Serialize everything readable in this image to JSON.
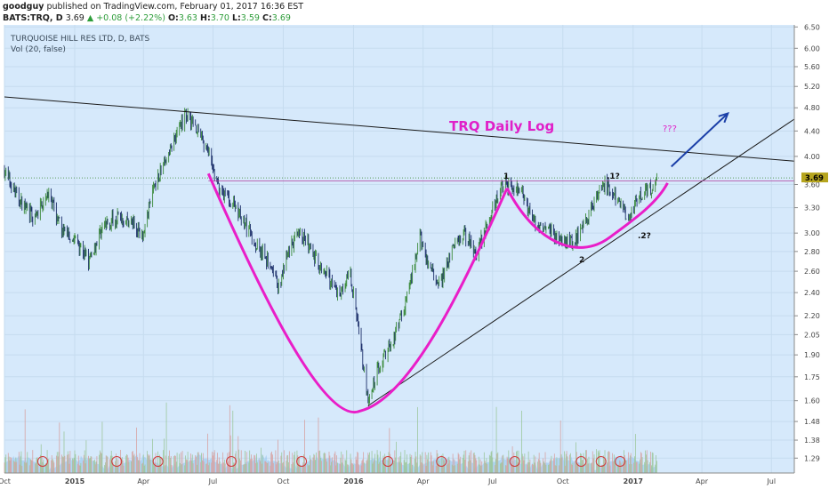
{
  "header": {
    "author": "goodguy",
    "published_text": "published on TradingView.com, February 01, 2017 16:36 EST",
    "symbol": "BATS:TRQ, D",
    "last": "3.69",
    "change": "+0.08 (+2.22%)",
    "o_label": "O:",
    "o_value": "3.63",
    "h_label": "H:",
    "h_value": "3.70",
    "l_label": "L:",
    "l_value": "3.59",
    "c_label": "C:",
    "c_value": "3.69"
  },
  "legend": {
    "series_title": "TURQUOISE HILL RES LTD, D, BATS",
    "volume_title": "Vol (20, false)"
  },
  "annotations": {
    "title": "TRQ  Daily Log",
    "question": "???",
    "peak1": "1",
    "peak1q": ".1?",
    "trough2": "2",
    "trough2q": ".2?",
    "price_tag": "3.69"
  },
  "colors": {
    "background": "#d6e9fb",
    "grid": "#c6dcef",
    "candle_up": "#3a8a3a",
    "candle_down": "#1c2f6a",
    "cup_curve": "#e91ec8",
    "title_pink": "#e020c8",
    "arrow": "#1b3fa8",
    "resistance_line": "#b040a0",
    "price_tag": "#b6a51e",
    "volume_area": "#8fc3ec"
  },
  "chart_data": {
    "type": "candlestick",
    "scale": "log",
    "x_ticks": [
      "Oct",
      "2015",
      "Apr",
      "Jul",
      "Oct",
      "2016",
      "Apr",
      "Jul",
      "Oct",
      "2017",
      "Apr",
      "Jul"
    ],
    "y_ticks": [
      6.5,
      6.0,
      5.6,
      5.2,
      4.8,
      4.4,
      4.0,
      3.6,
      3.3,
      3.0,
      2.8,
      2.6,
      2.4,
      2.2,
      2.05,
      1.9,
      1.75,
      1.6,
      1.48,
      1.38,
      1.29
    ],
    "ylim": [
      1.22,
      6.55
    ],
    "last_price": 3.69,
    "price_path": [
      [
        "2014-10-01",
        3.8
      ],
      [
        "2014-10-20",
        3.4
      ],
      [
        "2014-11-10",
        3.15
      ],
      [
        "2014-11-25",
        3.5
      ],
      [
        "2014-12-15",
        3.05
      ],
      [
        "2015-01-05",
        2.9
      ],
      [
        "2015-01-20",
        2.7
      ],
      [
        "2015-02-05",
        3.05
      ],
      [
        "2015-02-25",
        3.2
      ],
      [
        "2015-03-20",
        3.1
      ],
      [
        "2015-04-01",
        3.0
      ],
      [
        "2015-04-15",
        3.6
      ],
      [
        "2015-05-01",
        3.95
      ],
      [
        "2015-05-15",
        4.4
      ],
      [
        "2015-05-28",
        4.7
      ],
      [
        "2015-06-10",
        4.45
      ],
      [
        "2015-06-25",
        4.05
      ],
      [
        "2015-07-08",
        3.55
      ],
      [
        "2015-07-25",
        3.4
      ],
      [
        "2015-08-10",
        3.15
      ],
      [
        "2015-08-25",
        2.9
      ],
      [
        "2015-09-10",
        2.7
      ],
      [
        "2015-09-25",
        2.45
      ],
      [
        "2015-10-10",
        2.85
      ],
      [
        "2015-10-25",
        3.0
      ],
      [
        "2015-11-10",
        2.75
      ],
      [
        "2015-11-25",
        2.6
      ],
      [
        "2015-12-10",
        2.4
      ],
      [
        "2015-12-28",
        2.55
      ],
      [
        "2016-01-08",
        2.1
      ],
      [
        "2016-01-20",
        1.58
      ],
      [
        "2016-02-05",
        1.85
      ],
      [
        "2016-02-25",
        2.05
      ],
      [
        "2016-03-15",
        2.45
      ],
      [
        "2016-03-28",
        2.95
      ],
      [
        "2016-04-10",
        2.6
      ],
      [
        "2016-04-25",
        2.5
      ],
      [
        "2016-05-10",
        2.85
      ],
      [
        "2016-05-25",
        3.0
      ],
      [
        "2016-06-10",
        2.8
      ],
      [
        "2016-06-25",
        3.1
      ],
      [
        "2016-07-10",
        3.55
      ],
      [
        "2016-07-25",
        3.62
      ],
      [
        "2016-08-10",
        3.45
      ],
      [
        "2016-08-25",
        3.1
      ],
      [
        "2016-09-10",
        3.05
      ],
      [
        "2016-09-25",
        2.95
      ],
      [
        "2016-10-10",
        2.9
      ],
      [
        "2016-10-25",
        3.0
      ],
      [
        "2016-11-10",
        3.35
      ],
      [
        "2016-11-25",
        3.6
      ],
      [
        "2016-12-10",
        3.4
      ],
      [
        "2016-12-25",
        3.2
      ],
      [
        "2017-01-10",
        3.45
      ],
      [
        "2017-01-25",
        3.55
      ],
      [
        "2017-02-01",
        3.69
      ]
    ],
    "trendlines": [
      {
        "name": "descending-resistance",
        "points": [
          [
            "2014-10-01",
            5.0
          ],
          [
            "2017-07-31",
            3.93
          ]
        ]
      },
      {
        "name": "ascending-support",
        "points": [
          [
            "2016-01-20",
            1.57
          ],
          [
            "2017-07-31",
            4.6
          ]
        ]
      },
      {
        "name": "neckline",
        "points": [
          [
            "2015-06-25",
            3.65
          ],
          [
            "2017-07-31",
            3.65
          ]
        ]
      }
    ]
  }
}
